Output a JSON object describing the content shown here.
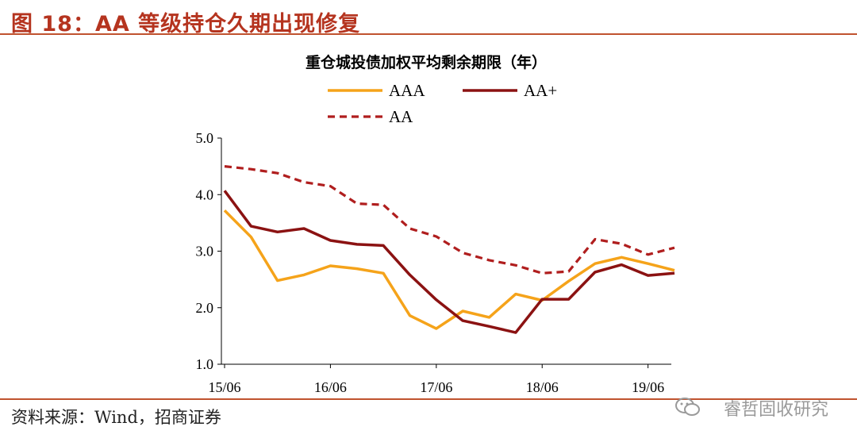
{
  "figure": {
    "title": "图 18：AA 等级持仓久期出现修复",
    "source": "资料来源：Wind，招商证券",
    "watermark": "睿哲固收研究"
  },
  "chart_data": {
    "type": "line",
    "title": "重仓城投债加权平均剩余期限（年）",
    "xlabel": "",
    "ylabel": "",
    "ylim": [
      1.0,
      5.0
    ],
    "yticks": [
      "5.0",
      "4.0",
      "3.0",
      "2.0",
      "1.0"
    ],
    "xticks": [
      "15/06",
      "16/06",
      "17/06",
      "18/06",
      "19/06"
    ],
    "x": [
      "15/06",
      "15/09",
      "15/12",
      "16/03",
      "16/06",
      "16/09",
      "16/12",
      "17/03",
      "17/06",
      "17/09",
      "17/12",
      "18/03",
      "18/06",
      "18/09",
      "18/12",
      "19/03",
      "19/06",
      "19/09"
    ],
    "grid": false,
    "legend": "top",
    "series": [
      {
        "name": "AAA",
        "color": "#f5a31a",
        "dash": false,
        "values": [
          3.72,
          3.25,
          2.48,
          2.58,
          2.74,
          2.69,
          2.61,
          1.86,
          1.63,
          1.94,
          1.83,
          2.24,
          2.13,
          2.47,
          2.78,
          2.89,
          2.78,
          2.66
        ]
      },
      {
        "name": "AA+",
        "color": "#8b1212",
        "dash": false,
        "values": [
          4.07,
          3.44,
          3.34,
          3.4,
          3.19,
          3.12,
          3.1,
          2.58,
          2.14,
          1.77,
          1.67,
          1.56,
          2.15,
          2.15,
          2.63,
          2.76,
          2.57,
          2.61
        ]
      },
      {
        "name": "AA",
        "color": "#b01e1e",
        "dash": true,
        "values": [
          4.5,
          4.45,
          4.38,
          4.22,
          4.15,
          3.84,
          3.82,
          3.4,
          3.26,
          2.97,
          2.84,
          2.75,
          2.61,
          2.64,
          3.21,
          3.13,
          2.94,
          3.06
        ]
      }
    ]
  }
}
